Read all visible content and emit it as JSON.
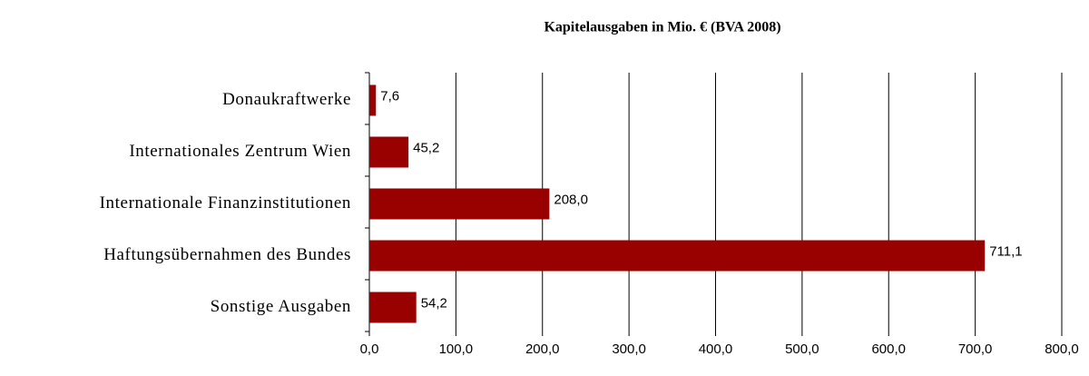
{
  "chart_data": {
    "type": "bar",
    "orientation": "horizontal",
    "title": "Kapitelausgaben in Mio. € (BVA 2008)",
    "categories": [
      "Donaukraftwerke",
      "Internationales Zentrum Wien",
      "Internationale Finanzinstitutionen",
      "Haftungsübernahmen des Bundes",
      "Sonstige Ausgaben"
    ],
    "values": [
      7.6,
      45.2,
      208.0,
      711.1,
      54.2
    ],
    "value_labels": [
      "7,6",
      "45,2",
      "208,0",
      "711,1",
      "54,2"
    ],
    "color": "#990000",
    "xlim": [
      0,
      800
    ],
    "xticks": [
      {
        "value": 0,
        "label": "0,0"
      },
      {
        "value": 100,
        "label": "100,0"
      },
      {
        "value": 200,
        "label": "200,0"
      },
      {
        "value": 300,
        "label": "300,0"
      },
      {
        "value": 400,
        "label": "400,0"
      },
      {
        "value": 500,
        "label": "500,0"
      },
      {
        "value": 600,
        "label": "600,0"
      },
      {
        "value": 700,
        "label": "700,0"
      },
      {
        "value": 800,
        "label": "800,0"
      }
    ],
    "grid": true
  }
}
